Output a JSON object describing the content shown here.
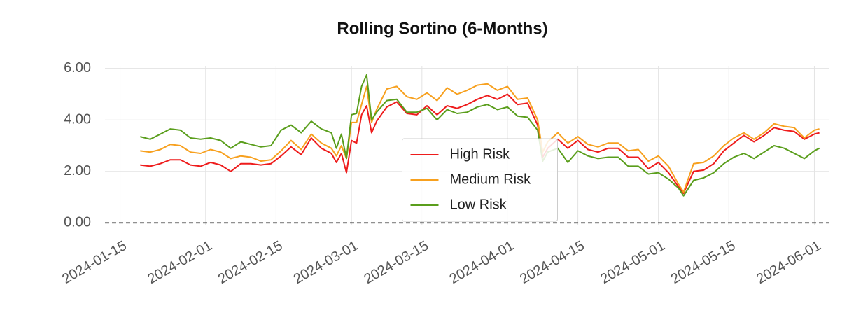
{
  "chart_data": {
    "type": "line",
    "title": "Rolling Sortino (6-Months)",
    "x": [
      "2024-01-19",
      "2024-01-21",
      "2024-01-23",
      "2024-01-25",
      "2024-01-27",
      "2024-01-29",
      "2024-01-31",
      "2024-02-02",
      "2024-02-04",
      "2024-02-06",
      "2024-02-08",
      "2024-02-10",
      "2024-02-12",
      "2024-02-14",
      "2024-02-16",
      "2024-02-18",
      "2024-02-20",
      "2024-02-22",
      "2024-02-24",
      "2024-02-26",
      "2024-02-27",
      "2024-02-28",
      "2024-02-29",
      "2024-03-01",
      "2024-03-02",
      "2024-03-03",
      "2024-03-04",
      "2024-03-05",
      "2024-03-06",
      "2024-03-08",
      "2024-03-10",
      "2024-03-12",
      "2024-03-14",
      "2024-03-16",
      "2024-03-18",
      "2024-03-20",
      "2024-03-22",
      "2024-03-24",
      "2024-03-26",
      "2024-03-28",
      "2024-03-30",
      "2024-04-01",
      "2024-04-03",
      "2024-04-05",
      "2024-04-07",
      "2024-04-08",
      "2024-04-09",
      "2024-04-11",
      "2024-04-13",
      "2024-04-15",
      "2024-04-17",
      "2024-04-19",
      "2024-04-21",
      "2024-04-23",
      "2024-04-25",
      "2024-04-27",
      "2024-04-29",
      "2024-05-01",
      "2024-05-03",
      "2024-05-05",
      "2024-05-06",
      "2024-05-08",
      "2024-05-10",
      "2024-05-12",
      "2024-05-14",
      "2024-05-16",
      "2024-05-18",
      "2024-05-20",
      "2024-05-22",
      "2024-05-24",
      "2024-05-26",
      "2024-05-28",
      "2024-05-30",
      "2024-06-01",
      "2024-06-02"
    ],
    "series": [
      {
        "name": "High Risk",
        "color": "#ee1c1c",
        "values": [
          2.25,
          2.2,
          2.3,
          2.45,
          2.45,
          2.25,
          2.2,
          2.35,
          2.25,
          2.0,
          2.3,
          2.3,
          2.25,
          2.3,
          2.6,
          2.95,
          2.65,
          3.3,
          2.9,
          2.7,
          2.35,
          2.7,
          1.95,
          3.2,
          3.1,
          4.2,
          4.55,
          3.5,
          3.95,
          4.5,
          4.7,
          4.25,
          4.2,
          4.55,
          4.2,
          4.55,
          4.45,
          4.6,
          4.8,
          4.95,
          4.8,
          5.0,
          4.6,
          4.65,
          3.8,
          2.55,
          2.9,
          3.25,
          2.9,
          3.2,
          2.85,
          2.75,
          2.9,
          2.9,
          2.55,
          2.55,
          2.1,
          2.35,
          1.95,
          1.4,
          1.15,
          2.0,
          2.05,
          2.3,
          2.8,
          3.1,
          3.4,
          3.15,
          3.4,
          3.7,
          3.6,
          3.55,
          3.25,
          3.45,
          3.5
        ]
      },
      {
        "name": "Medium Risk",
        "color": "#f7a01e",
        "values": [
          2.8,
          2.75,
          2.85,
          3.05,
          3.0,
          2.75,
          2.7,
          2.85,
          2.75,
          2.5,
          2.6,
          2.55,
          2.4,
          2.45,
          2.8,
          3.2,
          2.85,
          3.45,
          3.1,
          2.9,
          2.6,
          3.0,
          2.5,
          3.9,
          3.9,
          4.6,
          5.3,
          3.9,
          4.4,
          5.2,
          5.3,
          4.9,
          4.8,
          5.05,
          4.75,
          5.25,
          5.0,
          5.15,
          5.35,
          5.4,
          5.15,
          5.3,
          4.8,
          4.85,
          4.0,
          2.75,
          3.15,
          3.5,
          3.1,
          3.35,
          3.05,
          2.95,
          3.1,
          3.1,
          2.8,
          2.85,
          2.4,
          2.6,
          2.2,
          1.5,
          1.2,
          2.3,
          2.35,
          2.6,
          3.0,
          3.3,
          3.5,
          3.25,
          3.5,
          3.85,
          3.75,
          3.7,
          3.3,
          3.6,
          3.65
        ]
      },
      {
        "name": "Low Risk",
        "color": "#5a9e1c",
        "values": [
          3.35,
          3.25,
          3.45,
          3.65,
          3.6,
          3.3,
          3.25,
          3.3,
          3.2,
          2.9,
          3.15,
          3.05,
          2.95,
          3.0,
          3.6,
          3.8,
          3.5,
          3.95,
          3.65,
          3.5,
          2.9,
          3.45,
          2.5,
          4.2,
          4.25,
          5.3,
          5.75,
          4.0,
          4.3,
          4.75,
          4.8,
          4.3,
          4.3,
          4.45,
          4.0,
          4.4,
          4.25,
          4.3,
          4.5,
          4.6,
          4.4,
          4.5,
          4.15,
          4.1,
          3.6,
          2.4,
          2.75,
          2.9,
          2.35,
          2.8,
          2.6,
          2.5,
          2.55,
          2.55,
          2.2,
          2.2,
          1.9,
          1.95,
          1.7,
          1.35,
          1.05,
          1.65,
          1.75,
          1.95,
          2.3,
          2.55,
          2.7,
          2.5,
          2.75,
          3.0,
          2.9,
          2.7,
          2.5,
          2.8,
          2.9
        ]
      }
    ],
    "xlim": [
      "2024-01-12",
      "2024-06-04"
    ],
    "xticks": [
      "2024-01-15",
      "2024-02-01",
      "2024-02-15",
      "2024-03-01",
      "2024-03-15",
      "2024-04-01",
      "2024-04-15",
      "2024-05-01",
      "2024-05-15",
      "2024-06-01"
    ],
    "ylim": [
      -0.1,
      6.1
    ],
    "yticks": [
      {
        "value": 0,
        "label": "0.00"
      },
      {
        "value": 2,
        "label": "2.00"
      },
      {
        "value": 4,
        "label": "4.00"
      },
      {
        "value": 6,
        "label": "6.00"
      }
    ],
    "hline": 0,
    "grid": true,
    "legend": "center"
  }
}
